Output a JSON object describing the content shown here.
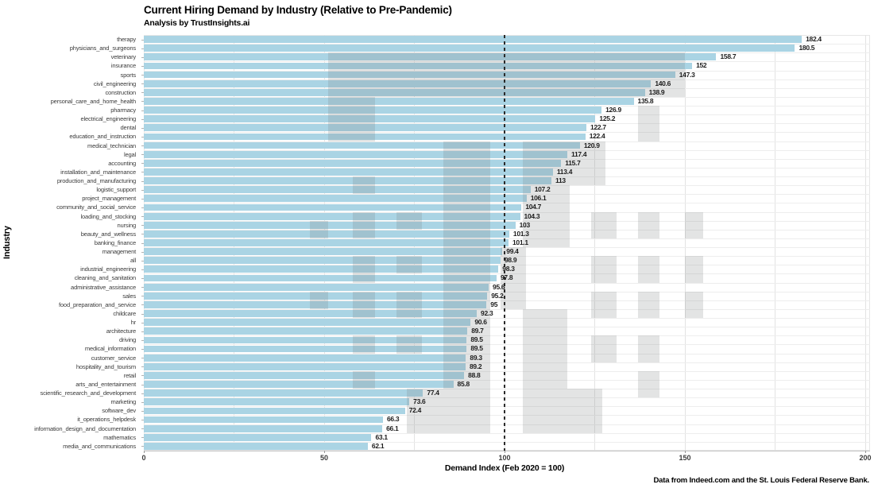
{
  "chart_data": {
    "type": "bar",
    "orientation": "horizontal",
    "title": "Current Hiring Demand by Industry (Relative to Pre-Pandemic)",
    "subtitle": "Analysis by TrustInsights.ai",
    "xlabel": "Demand Index (Feb 2020 = 100)",
    "ylabel": "Industry",
    "caption": "Data from Indeed.com and the St. Louis Federal Reserve Bank.",
    "xlim": [
      0,
      200
    ],
    "x_ticks": [
      0,
      50,
      100,
      150,
      200
    ],
    "grid_x": [
      25,
      50,
      75,
      100,
      125,
      150,
      175,
      200
    ],
    "reference_line_x": 100,
    "legend": "none",
    "bar_color": "#aad4e4",
    "overlay_color": "rgba(127,130,133,0.22)",
    "categories": [
      "therapy",
      "physicians_and_surgeons",
      "veterinary",
      "insurance",
      "sports",
      "civil_engineering",
      "construction",
      "personal_care_and_home_health",
      "pharmacy",
      "electrical_engineering",
      "dental",
      "education_and_instruction",
      "medical_technician",
      "legal",
      "accounting",
      "installation_and_maintenance",
      "production_and_manufacturing",
      "logistic_support",
      "project_management",
      "community_and_social_service",
      "loading_and_stocking",
      "nursing",
      "beauty_and_wellness",
      "banking_finance",
      "management",
      "all",
      "industrial_engineering",
      "cleaning_and_sanitation",
      "administrative_assistance",
      "sales",
      "food_preparation_and_service",
      "childcare",
      "hr",
      "architecture",
      "driving",
      "medical_information",
      "customer_service",
      "hospitality_and_tourism",
      "retail",
      "arts_and_entertainment",
      "scientific_research_and_development",
      "marketing",
      "software_dev",
      "it_operations_helpdesk",
      "information_design_and_documentation",
      "mathematics",
      "media_and_communications"
    ],
    "values": [
      182.4,
      180.5,
      158.7,
      152,
      147.3,
      140.6,
      138.9,
      135.8,
      126.9,
      125.2,
      122.7,
      122.4,
      120.9,
      117.4,
      115.7,
      113.4,
      113,
      107.2,
      106.1,
      104.7,
      104.3,
      103,
      101.3,
      101.1,
      99.4,
      98.9,
      98.3,
      97.8,
      95.6,
      95.2,
      95,
      92.3,
      90.6,
      89.7,
      89.5,
      89.5,
      89.3,
      89.2,
      88.8,
      85.8,
      77.4,
      73.6,
      72.4,
      66.3,
      66.1,
      63.1,
      62.1
    ],
    "overlay_boxes": [
      {
        "x0": 51,
        "x1": 150,
        "r0": 2,
        "r1": 6
      },
      {
        "x0": 51,
        "x1": 64,
        "r0": 7,
        "r1": 11
      },
      {
        "x0": 83,
        "x1": 96,
        "r0": 12,
        "r1": 39
      },
      {
        "x0": 105,
        "x1": 128,
        "r0": 12,
        "r1": 16
      },
      {
        "x0": 105,
        "x1": 118,
        "r0": 17,
        "r1": 23
      },
      {
        "x0": 99,
        "x1": 106,
        "r0": 24,
        "r1": 30
      },
      {
        "x0": 105,
        "x1": 117.5,
        "r0": 31,
        "r1": 39
      },
      {
        "x0": 73,
        "x1": 96,
        "r0": 40,
        "r1": 44
      },
      {
        "x0": 105,
        "x1": 127,
        "r0": 40,
        "r1": 44
      },
      {
        "x0": 46,
        "x1": 51,
        "r0": 21,
        "r1": 22
      },
      {
        "x0": 46,
        "x1": 51,
        "r0": 29,
        "r1": 30
      },
      {
        "x0": 58,
        "x1": 64,
        "r0": 16,
        "r1": 17
      },
      {
        "x0": 58,
        "x1": 64,
        "r0": 20,
        "r1": 22
      },
      {
        "x0": 58,
        "x1": 64,
        "r0": 25,
        "r1": 27
      },
      {
        "x0": 58,
        "x1": 64,
        "r0": 29,
        "r1": 31
      },
      {
        "x0": 58,
        "x1": 64,
        "r0": 34,
        "r1": 35
      },
      {
        "x0": 58,
        "x1": 64,
        "r0": 38,
        "r1": 39
      },
      {
        "x0": 70,
        "x1": 77,
        "r0": 20,
        "r1": 21
      },
      {
        "x0": 70,
        "x1": 77,
        "r0": 25,
        "r1": 26
      },
      {
        "x0": 70,
        "x1": 77,
        "r0": 29,
        "r1": 31
      },
      {
        "x0": 70,
        "x1": 77,
        "r0": 34,
        "r1": 35
      },
      {
        "x0": 124,
        "x1": 131,
        "r0": 20,
        "r1": 22
      },
      {
        "x0": 124,
        "x1": 131,
        "r0": 25,
        "r1": 27
      },
      {
        "x0": 124,
        "x1": 131,
        "r0": 29,
        "r1": 31
      },
      {
        "x0": 124,
        "x1": 131,
        "r0": 34,
        "r1": 36
      },
      {
        "x0": 137,
        "x1": 143,
        "r0": 8,
        "r1": 11
      },
      {
        "x0": 137,
        "x1": 143,
        "r0": 20,
        "r1": 22
      },
      {
        "x0": 137,
        "x1": 143,
        "r0": 25,
        "r1": 27
      },
      {
        "x0": 137,
        "x1": 143,
        "r0": 29,
        "r1": 31
      },
      {
        "x0": 137,
        "x1": 143,
        "r0": 34,
        "r1": 36
      },
      {
        "x0": 137,
        "x1": 143,
        "r0": 38,
        "r1": 40
      },
      {
        "x0": 150,
        "x1": 155,
        "r0": 20,
        "r1": 22
      },
      {
        "x0": 150,
        "x1": 155,
        "r0": 25,
        "r1": 27
      },
      {
        "x0": 150,
        "x1": 155,
        "r0": 29,
        "r1": 31
      }
    ]
  }
}
